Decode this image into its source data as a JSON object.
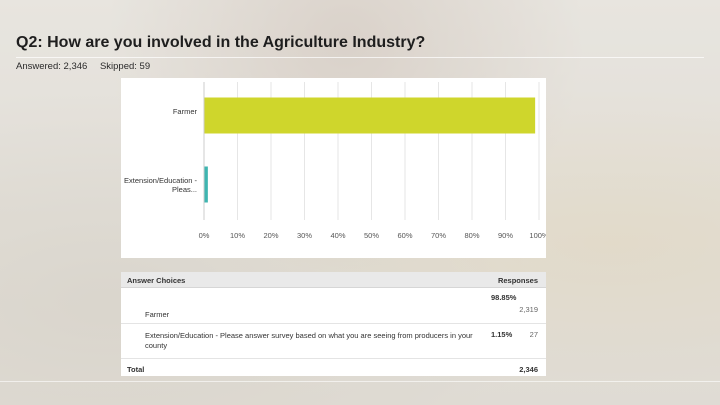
{
  "header": {
    "title": "Q2: How are you involved in the Agriculture Industry?",
    "answered": "Answered: 2,346",
    "skipped": "Skipped: 59"
  },
  "colors": {
    "farmer_bar": "#cfd62c",
    "extension_bar": "#3fb5b0",
    "panel": "#ffffff"
  },
  "chart_data": {
    "type": "bar",
    "orientation": "horizontal",
    "categories": [
      "Farmer",
      "Extension/Education - Pleas..."
    ],
    "values": [
      98.85,
      1.15
    ],
    "xlim": [
      0,
      100
    ],
    "xticks": [
      "0%",
      "10%",
      "20%",
      "30%",
      "40%",
      "50%",
      "60%",
      "70%",
      "80%",
      "90%",
      "100%"
    ],
    "grid": true,
    "title": "",
    "xlabel": "",
    "ylabel": ""
  },
  "table": {
    "header_choice": "Answer Choices",
    "header_responses": "Responses",
    "rows": [
      {
        "choice": "Farmer",
        "percent": "98.85%",
        "count": "2,319"
      },
      {
        "choice": "Extension/Education - Please answer survey based on what you are seeing from producers in your county",
        "percent": "1.15%",
        "count": "27"
      }
    ],
    "total_label": "Total",
    "total_value": "2,346"
  }
}
